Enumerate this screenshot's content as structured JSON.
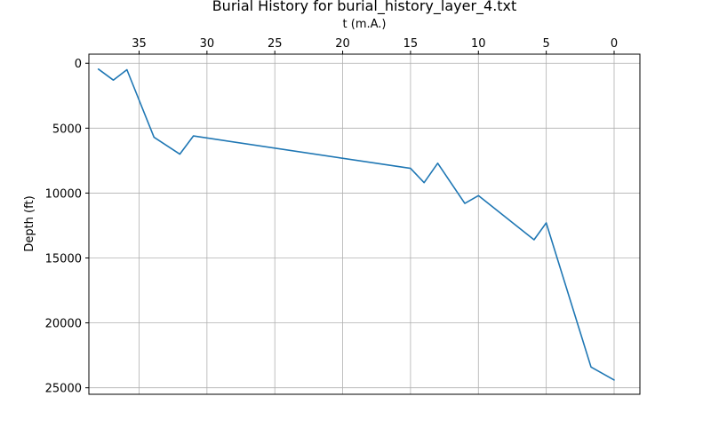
{
  "chart_data": {
    "type": "line",
    "title": "Burial History for burial_history_layer_4.txt",
    "xlabel": "t (m.A.)",
    "ylabel": "Depth (ft)",
    "x_axis_position": "top",
    "x_reversed": true,
    "y_inverted": true,
    "xlim": [
      38.7,
      -1.9
    ],
    "ylim": [
      25500,
      -700
    ],
    "xticks": [
      35,
      30,
      25,
      20,
      15,
      10,
      5,
      0
    ],
    "yticks": [
      0,
      5000,
      10000,
      15000,
      20000,
      25000
    ],
    "grid": true,
    "series": [
      {
        "color": "#1f77b4",
        "x": [
          38.0,
          36.9,
          35.9,
          33.9,
          32.0,
          31.0,
          15.0,
          14.0,
          13.0,
          11.0,
          10.0,
          5.9,
          5.0,
          1.7,
          0.0
        ],
        "y": [
          450,
          1300,
          500,
          5700,
          7000,
          5600,
          8100,
          9200,
          7700,
          10800,
          10200,
          13600,
          12300,
          23400,
          24400
        ]
      }
    ]
  }
}
